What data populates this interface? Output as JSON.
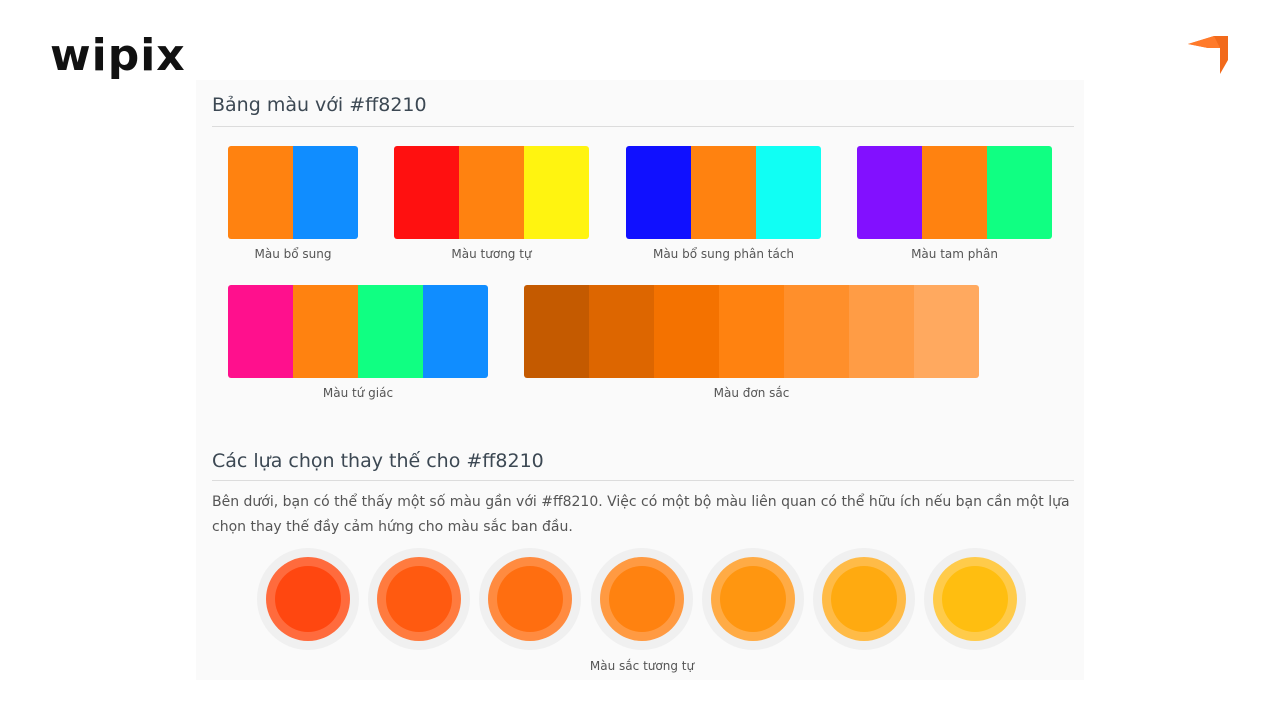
{
  "brand": {
    "logo_text": "wipix",
    "accent": "#f26a1b"
  },
  "section1": {
    "title": "Bảng màu với #ff8210"
  },
  "palettes": [
    {
      "label": "Màu bổ sung",
      "colors": [
        "#ff8210",
        "#108dff"
      ]
    },
    {
      "label": "Màu tương tự",
      "colors": [
        "#ff1010",
        "#ff8210",
        "#fff410"
      ]
    },
    {
      "label": "Màu bổ sung phân tách",
      "colors": [
        "#1010ff",
        "#ff8210",
        "#10fff4"
      ]
    },
    {
      "label": "Màu tam phân",
      "colors": [
        "#8210ff",
        "#ff8210",
        "#10ff82"
      ]
    },
    {
      "label": "Màu tứ giác",
      "colors": [
        "#ff108d",
        "#ff8210",
        "#10ff82",
        "#108dff"
      ]
    },
    {
      "label": "Màu đơn sắc",
      "colors": [
        "#c45a00",
        "#dd6600",
        "#f47200",
        "#ff8210",
        "#ff8f2b",
        "#ff9c45",
        "#ffa95f"
      ]
    }
  ],
  "section2": {
    "title": "Các lựa chọn thay thế cho #ff8210",
    "description": "Bên dưới, bạn có thể thấy một số màu gần với #ff8210. Việc có một bộ màu liên quan có thể hữu ích nếu bạn cần một lựa chọn thay thế đầy cảm hứng cho màu sắc ban đầu.",
    "circles_label": "Màu sắc tương tự",
    "circles": [
      {
        "color": "#ff4710",
        "ring": "#ff6b3d"
      },
      {
        "color": "#ff5a10",
        "ring": "#ff7b3f"
      },
      {
        "color": "#ff6e10",
        "ring": "#ff8b40"
      },
      {
        "color": "#ff8210",
        "ring": "#ff9a42"
      },
      {
        "color": "#ff9610",
        "ring": "#ffab45"
      },
      {
        "color": "#ffaa10",
        "ring": "#ffbb47"
      },
      {
        "color": "#ffbe10",
        "ring": "#ffcb4a"
      }
    ]
  }
}
